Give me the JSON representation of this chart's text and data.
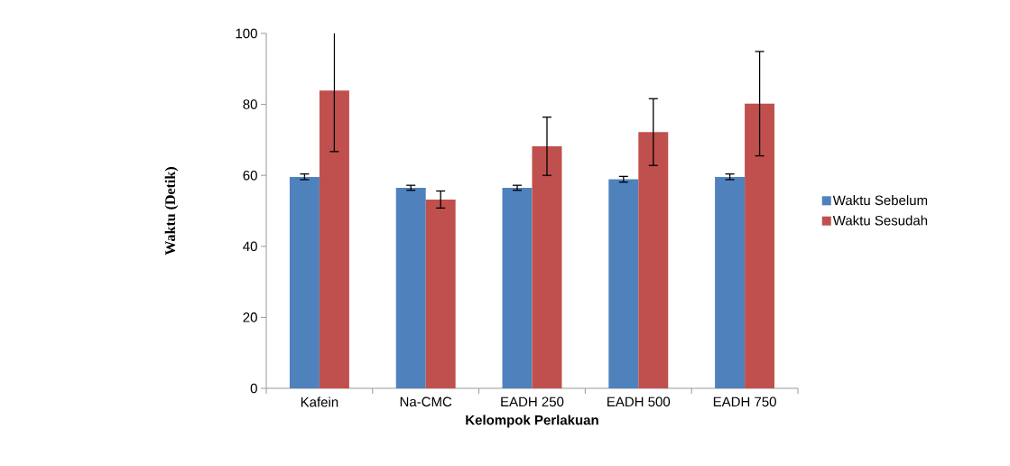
{
  "chart_data": {
    "type": "bar",
    "xlabel": "Kelompok Perlakuan",
    "ylabel": "Waktu (Detik)",
    "categories": [
      "Kafein",
      "Na-CMC",
      "EADH 250",
      "EADH 500",
      "EADH 750"
    ],
    "series": [
      {
        "name": "Waktu Sebelum",
        "color": "#4f81bd",
        "values": [
          59.6,
          56.5,
          56.5,
          58.9,
          59.6
        ],
        "errors": [
          0.8,
          0.7,
          0.7,
          0.8,
          0.8
        ]
      },
      {
        "name": "Waktu Sesudah",
        "color": "#c0504d",
        "values": [
          83.9,
          53.2,
          68.2,
          72.2,
          80.2
        ],
        "errors": [
          17.2,
          2.4,
          8.2,
          9.4,
          14.7
        ]
      }
    ],
    "ylim": [
      0,
      100
    ],
    "yticks": [
      0,
      20,
      40,
      60,
      80,
      100
    ],
    "legend": "right"
  }
}
